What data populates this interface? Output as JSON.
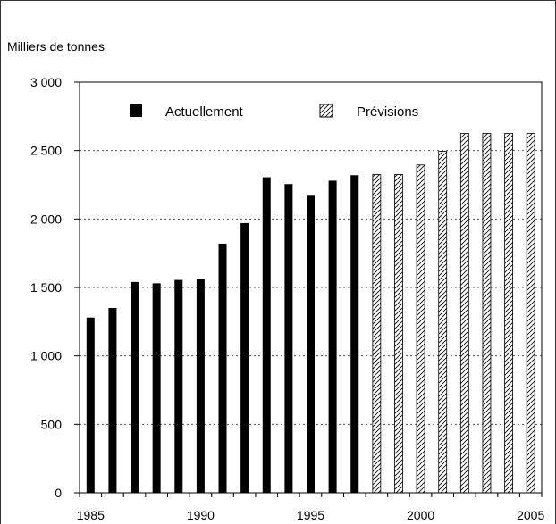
{
  "chart_data": {
    "type": "bar",
    "ylabel": "Milliers de tonnes",
    "ylim": [
      0,
      3000
    ],
    "yticks": [
      {
        "value": 0,
        "label": "0"
      },
      {
        "value": 500,
        "label": "500"
      },
      {
        "value": 1000,
        "label": "1 000"
      },
      {
        "value": 1500,
        "label": "1 500"
      },
      {
        "value": 2000,
        "label": "2 000"
      },
      {
        "value": 2500,
        "label": "2 500"
      },
      {
        "value": 3000,
        "label": "3 000"
      }
    ],
    "xticks": [
      "1985",
      "1990",
      "1995",
      "2000",
      "2005"
    ],
    "grid": true,
    "legend_position": "top",
    "series": [
      {
        "name": "Actuellement",
        "style": "solid",
        "color": "#000000",
        "x": [
          1985,
          1986,
          1987,
          1988,
          1989,
          1990,
          1991,
          1992,
          1993,
          1994,
          1995,
          1996,
          1997
        ],
        "values": [
          1280,
          1350,
          1540,
          1530,
          1555,
          1565,
          1820,
          1970,
          2305,
          2255,
          2170,
          2280,
          2320
        ]
      },
      {
        "name": "Prévisions",
        "style": "hatched",
        "color": "#000000",
        "x": [
          1998,
          1999,
          2000,
          2001,
          2002,
          2003,
          2004,
          2005
        ],
        "values": [
          2325,
          2325,
          2395,
          2495,
          2625,
          2625,
          2625,
          2625
        ]
      }
    ]
  }
}
